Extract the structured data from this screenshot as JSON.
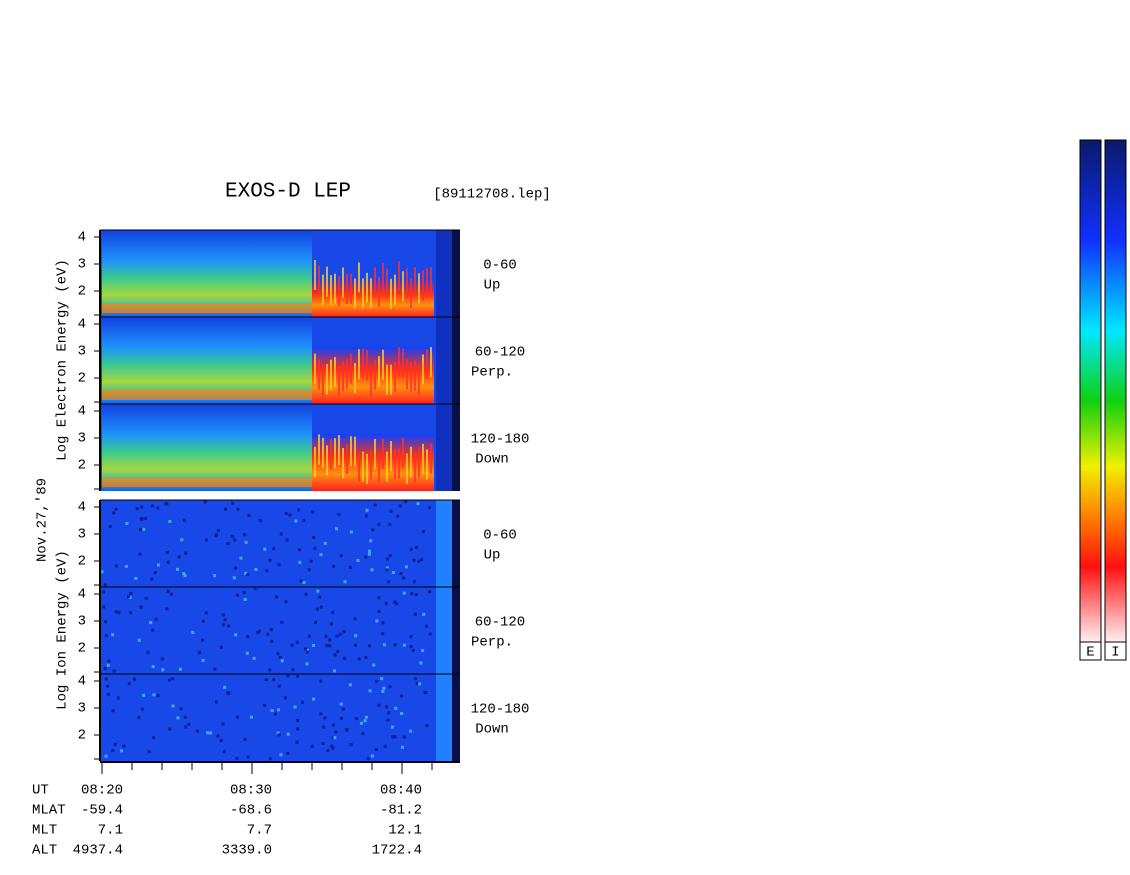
{
  "title": "EXOS-D LEP",
  "file": "[89112708.lep]",
  "date": "Nov.27,'89",
  "electron_axis_label": "Log  Electron  Energy (eV)",
  "ion_axis_label": "Log  Ion  Energy (eV)",
  "electron_panels": [
    {
      "range": "0-60",
      "direction": "Up",
      "ticks": [
        4,
        3,
        2
      ]
    },
    {
      "range": "60-120",
      "direction": "Perp.",
      "ticks": [
        4,
        3,
        2
      ]
    },
    {
      "range": "120-180",
      "direction": "Down",
      "ticks": [
        4,
        3,
        2
      ]
    }
  ],
  "ion_panels": [
    {
      "range": "0-60",
      "direction": "Up",
      "ticks": [
        4,
        3,
        2
      ]
    },
    {
      "range": "60-120",
      "direction": "Perp.",
      "ticks": [
        4,
        3,
        2
      ]
    },
    {
      "range": "120-180",
      "direction": "Down",
      "ticks": [
        4,
        3,
        2
      ]
    }
  ],
  "time_rows": [
    {
      "label": "UT",
      "values": [
        "08:20",
        "08:30",
        "08:40"
      ]
    },
    {
      "label": "MLAT",
      "values": [
        "-59.4",
        "-68.6",
        "-81.2"
      ]
    },
    {
      "label": "MLT",
      "values": [
        "7.1",
        "7.7",
        "12.1"
      ]
    },
    {
      "label": "ALT",
      "values": [
        "4937.4",
        "3339.0",
        "1722.4"
      ]
    }
  ],
  "colorbar_labels": [
    "E",
    "I"
  ]
}
